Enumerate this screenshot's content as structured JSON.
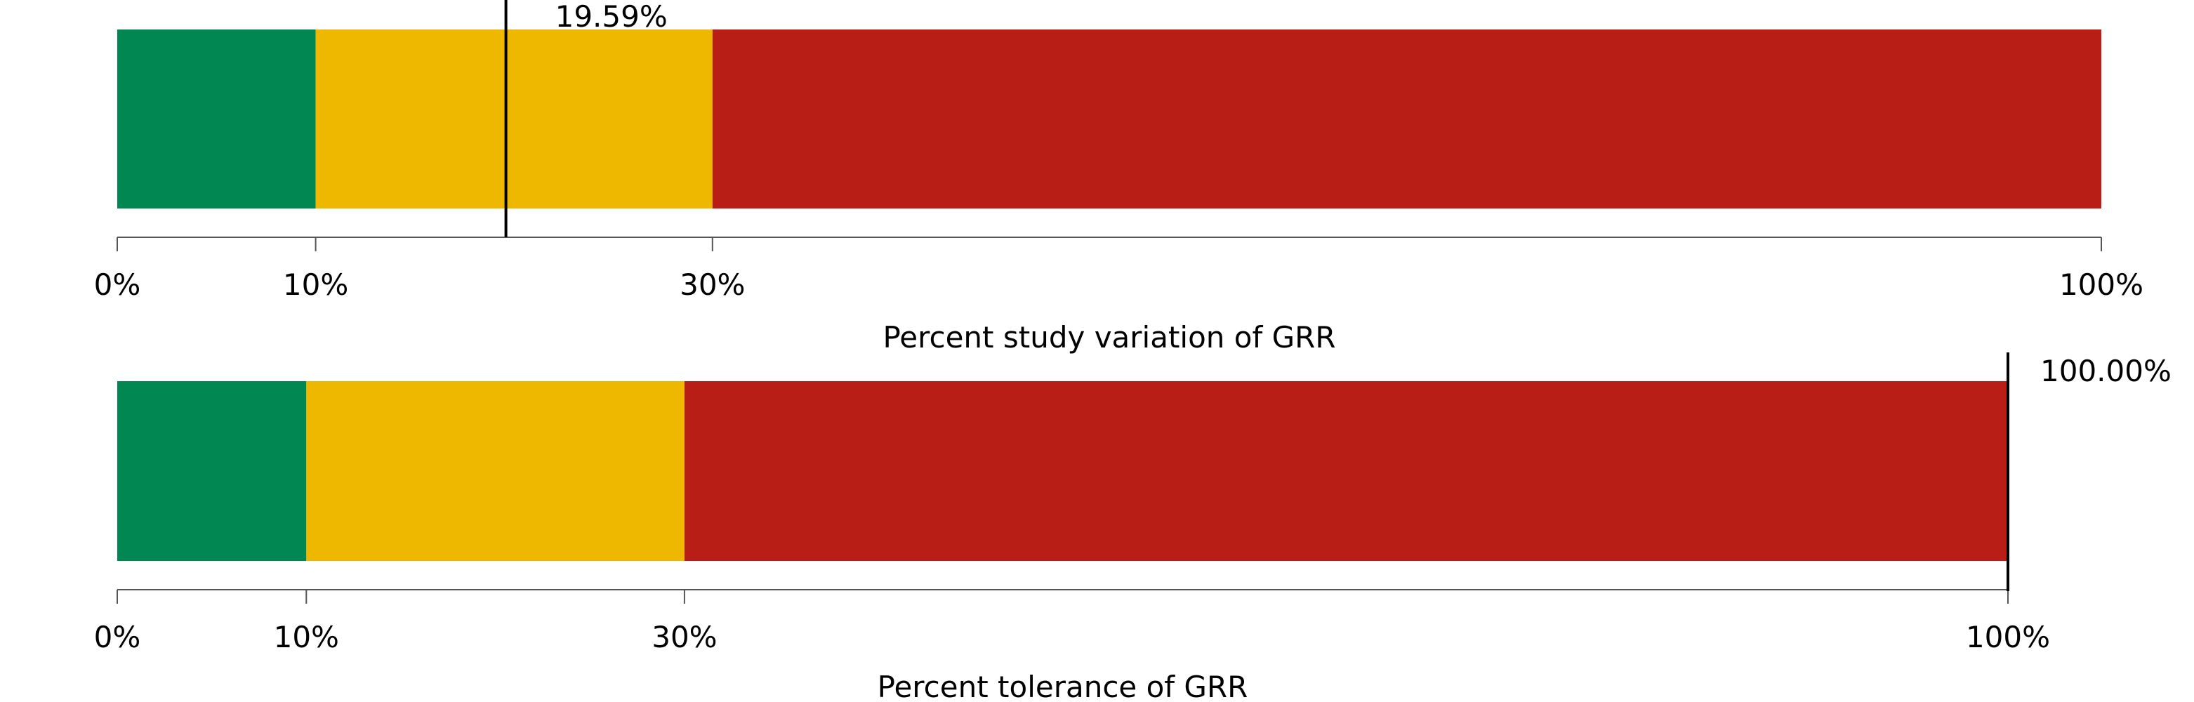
{
  "chart_data": [
    {
      "type": "bar",
      "orientation": "horizontal",
      "xlabel": "Percent study variation of GRR",
      "xlim": [
        0,
        100
      ],
      "bands": [
        {
          "from": 0,
          "to": 10,
          "color": "#008752"
        },
        {
          "from": 10,
          "to": 30,
          "color": "#EEB800"
        },
        {
          "from": 30,
          "to": 100,
          "color": "#B81E15"
        }
      ],
      "ticks": [
        {
          "value": 0,
          "label": "0%"
        },
        {
          "value": 10,
          "label": "10%"
        },
        {
          "value": 30,
          "label": "30%"
        },
        {
          "value": 100,
          "label": "100%"
        }
      ],
      "marker": {
        "value": 19.59,
        "label": "19.59%"
      }
    },
    {
      "type": "bar",
      "orientation": "horizontal",
      "xlabel": "Percent tolerance of GRR",
      "xlim": [
        0,
        100
      ],
      "bands": [
        {
          "from": 0,
          "to": 10,
          "color": "#008752"
        },
        {
          "from": 10,
          "to": 30,
          "color": "#EEB800"
        },
        {
          "from": 30,
          "to": 100,
          "color": "#B81E15"
        }
      ],
      "ticks": [
        {
          "value": 0,
          "label": "0%"
        },
        {
          "value": 10,
          "label": "10%"
        },
        {
          "value": 30,
          "label": "30%"
        },
        {
          "value": 100,
          "label": "100%"
        }
      ],
      "marker": {
        "value": 100.0,
        "label": "100.00%"
      }
    }
  ]
}
